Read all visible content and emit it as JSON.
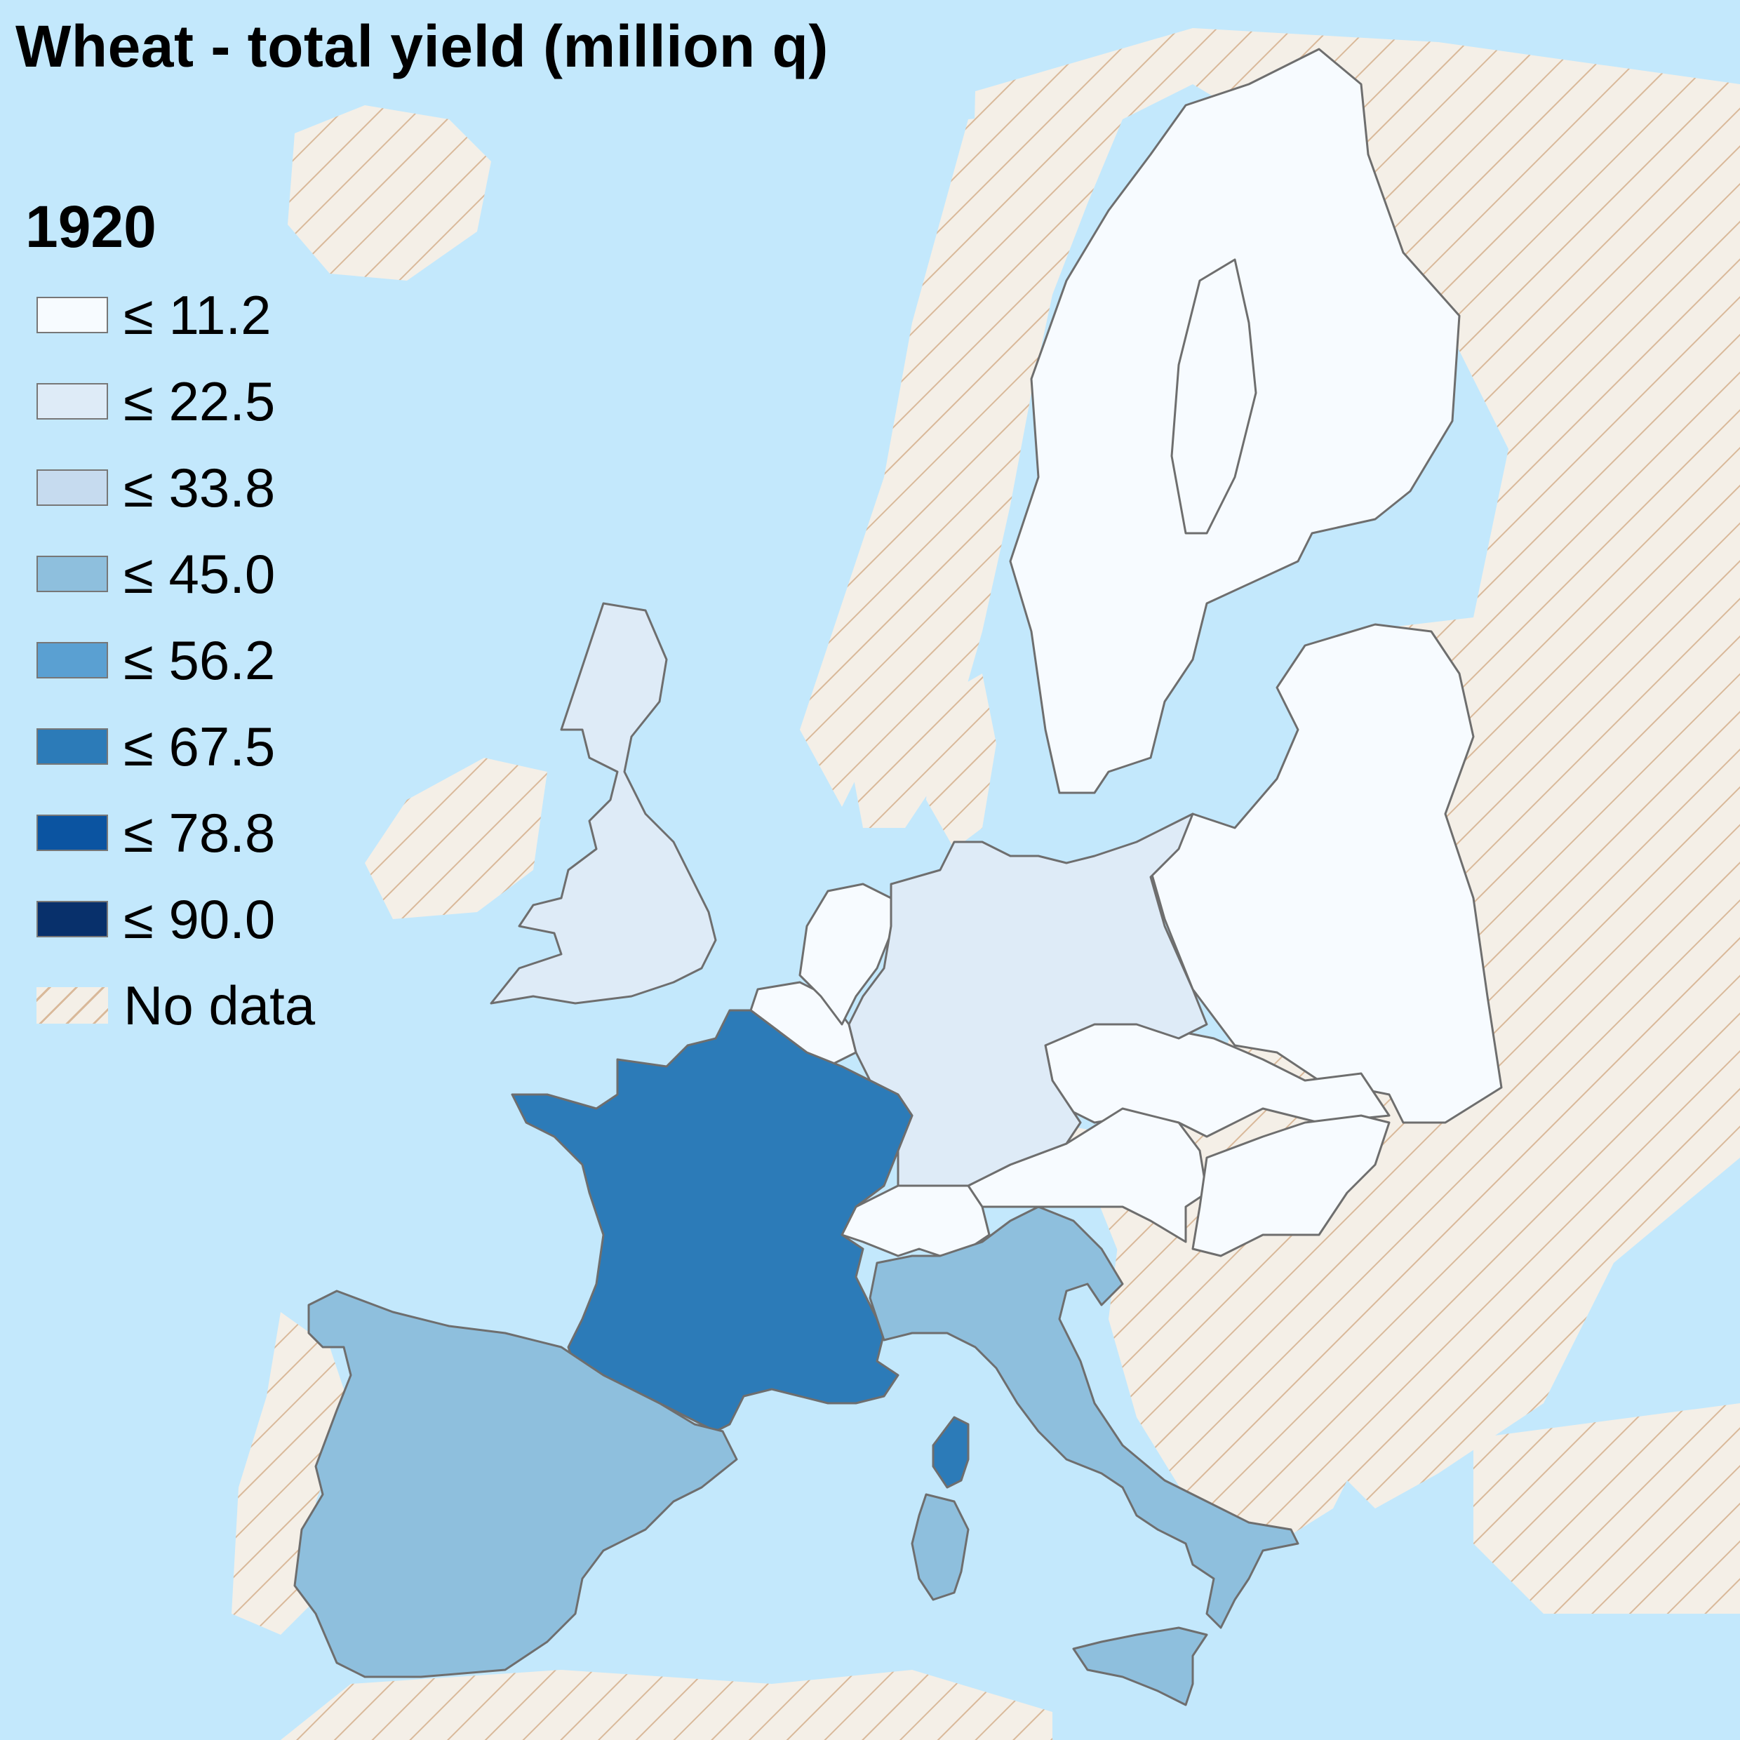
{
  "map": {
    "title": "Wheat - total yield (million q)",
    "year": "1920",
    "colors": {
      "sea": "#c3e8fc",
      "no_data_fill": "#f4efe7",
      "no_data_hatch": "#d9b99a",
      "border": "#6e6e6e"
    },
    "legend": [
      {
        "label": "≤ 11.2",
        "color": "#f7fbff"
      },
      {
        "label": "≤ 22.5",
        "color": "#deebf7"
      },
      {
        "label": "≤ 33.8",
        "color": "#c6dbef"
      },
      {
        "label": "≤ 45.0",
        "color": "#8ebfdd"
      },
      {
        "label": "≤ 56.2",
        "color": "#5aa0d2"
      },
      {
        "label": "≤ 67.5",
        "color": "#2c7bb8"
      },
      {
        "label": "≤ 78.8",
        "color": "#0b54a1"
      },
      {
        "label": "≤ 90.0",
        "color": "#08306b"
      },
      {
        "label": "No data",
        "color": "hatch"
      }
    ],
    "regions": [
      {
        "name": "Sweden-Finland",
        "color": "#f7fbff"
      },
      {
        "name": "Poland-Eastern",
        "color": "#f7fbff"
      },
      {
        "name": "Czechoslovakia",
        "color": "#f7fbff"
      },
      {
        "name": "Austria",
        "color": "#f7fbff"
      },
      {
        "name": "Hungary",
        "color": "#f7fbff"
      },
      {
        "name": "Switzerland",
        "color": "#f7fbff"
      },
      {
        "name": "Belgium",
        "color": "#f7fbff"
      },
      {
        "name": "Netherlands",
        "color": "#f7fbff"
      },
      {
        "name": "Germany",
        "color": "#deebf7"
      },
      {
        "name": "United Kingdom",
        "color": "#deebf7"
      },
      {
        "name": "France",
        "color": "#2c7bb8"
      },
      {
        "name": "Corsica",
        "color": "#2c7bb8"
      },
      {
        "name": "Spain",
        "color": "#8ebfdd"
      },
      {
        "name": "Italy",
        "color": "#8ebfdd"
      },
      {
        "name": "Sardinia",
        "color": "#8ebfdd"
      },
      {
        "name": "Sicily",
        "color": "#8ebfdd"
      }
    ]
  }
}
